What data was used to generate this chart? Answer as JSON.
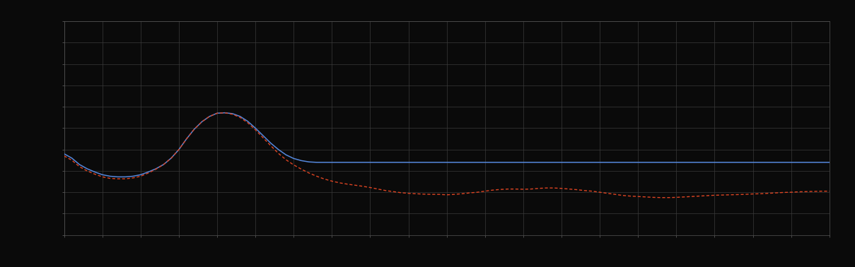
{
  "background_color": "#0a0a0a",
  "plot_bg_color": "#0a0a0a",
  "grid_color": "#3a3a3a",
  "blue_line_color": "#5588dd",
  "red_line_color": "#dd4422",
  "xlim": [
    0,
    100
  ],
  "ylim": [
    0,
    10
  ],
  "x_ticks_major": [
    0,
    5,
    10,
    15,
    20,
    25,
    30,
    35,
    40,
    45,
    50,
    55,
    60,
    65,
    70,
    75,
    80,
    85,
    90,
    95,
    100
  ],
  "y_ticks_major": [
    0,
    1,
    2,
    3,
    4,
    5,
    6,
    7,
    8,
    9,
    10
  ],
  "blue_x": [
    0,
    1,
    2,
    3,
    4,
    5,
    6,
    7,
    8,
    9,
    10,
    11,
    12,
    13,
    14,
    15,
    16,
    17,
    18,
    19,
    20,
    21,
    22,
    23,
    24,
    25,
    26,
    27,
    28,
    29,
    30,
    31,
    32,
    33,
    34,
    35,
    36,
    37,
    38,
    39,
    40,
    42,
    44,
    46,
    48,
    50,
    55,
    60,
    65,
    70,
    75,
    80,
    85,
    90,
    95,
    100
  ],
  "blue_y": [
    3.8,
    3.6,
    3.3,
    3.1,
    2.95,
    2.82,
    2.75,
    2.72,
    2.72,
    2.75,
    2.82,
    2.95,
    3.1,
    3.3,
    3.6,
    4.0,
    4.5,
    4.95,
    5.3,
    5.55,
    5.7,
    5.72,
    5.68,
    5.55,
    5.32,
    5.0,
    4.65,
    4.3,
    4.0,
    3.75,
    3.58,
    3.48,
    3.42,
    3.4,
    3.4,
    3.4,
    3.4,
    3.4,
    3.4,
    3.4,
    3.4,
    3.4,
    3.4,
    3.4,
    3.4,
    3.4,
    3.4,
    3.4,
    3.4,
    3.4,
    3.4,
    3.4,
    3.4,
    3.4,
    3.4,
    3.4
  ],
  "red_x": [
    0,
    1,
    2,
    3,
    4,
    5,
    6,
    7,
    8,
    9,
    10,
    11,
    12,
    13,
    14,
    15,
    16,
    17,
    18,
    19,
    20,
    21,
    22,
    23,
    24,
    25,
    26,
    27,
    28,
    29,
    30,
    31,
    32,
    33,
    34,
    35,
    36,
    37,
    38,
    39,
    40,
    41,
    42,
    43,
    44,
    45,
    46,
    47,
    48,
    49,
    50,
    51,
    52,
    53,
    54,
    55,
    56,
    57,
    58,
    59,
    60,
    61,
    62,
    63,
    64,
    65,
    66,
    67,
    68,
    69,
    70,
    71,
    72,
    73,
    74,
    75,
    76,
    77,
    78,
    79,
    80,
    81,
    82,
    83,
    84,
    85,
    86,
    87,
    88,
    89,
    90,
    91,
    92,
    93,
    94,
    95,
    96,
    97,
    98,
    99,
    100
  ],
  "red_y": [
    3.7,
    3.5,
    3.2,
    3.0,
    2.85,
    2.72,
    2.65,
    2.63,
    2.63,
    2.67,
    2.75,
    2.9,
    3.08,
    3.3,
    3.6,
    4.0,
    4.5,
    4.95,
    5.3,
    5.55,
    5.7,
    5.72,
    5.65,
    5.5,
    5.25,
    4.92,
    4.55,
    4.18,
    3.82,
    3.52,
    3.28,
    3.08,
    2.9,
    2.75,
    2.62,
    2.52,
    2.44,
    2.38,
    2.33,
    2.28,
    2.22,
    2.15,
    2.08,
    2.03,
    1.98,
    1.95,
    1.93,
    1.91,
    1.9,
    1.9,
    1.88,
    1.9,
    1.93,
    1.97,
    2.0,
    2.05,
    2.1,
    2.13,
    2.15,
    2.15,
    2.14,
    2.15,
    2.18,
    2.2,
    2.2,
    2.18,
    2.15,
    2.12,
    2.08,
    2.05,
    2.0,
    1.95,
    1.9,
    1.85,
    1.82,
    1.8,
    1.78,
    1.76,
    1.75,
    1.75,
    1.76,
    1.78,
    1.8,
    1.82,
    1.84,
    1.86,
    1.87,
    1.88,
    1.89,
    1.9,
    1.92,
    1.93,
    1.95,
    1.97,
    1.99,
    2.0,
    2.02,
    2.03,
    2.04,
    2.05,
    2.05
  ]
}
